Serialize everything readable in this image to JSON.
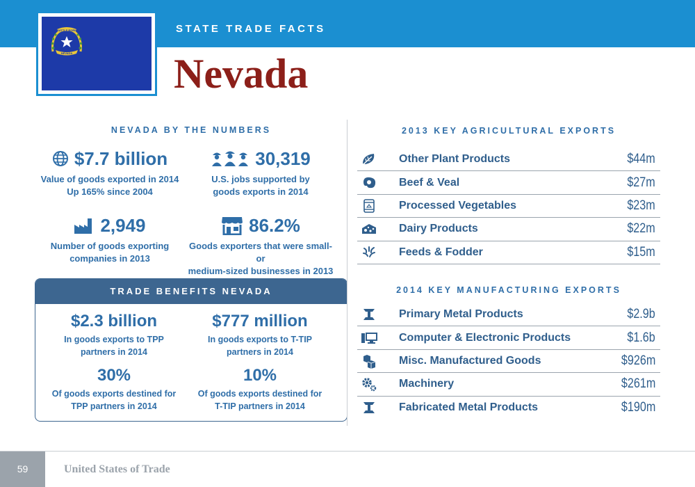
{
  "header": {
    "kicker": "STATE TRADE FACTS",
    "state": "Nevada",
    "flag": {
      "banner_top": "BATTLE BORN",
      "banner_bottom": "NEVADA"
    }
  },
  "numbers": {
    "heading": "NEVADA BY THE NUMBERS",
    "stats": [
      {
        "icon": "globe-icon",
        "value": "$7.7 billion",
        "line1": "Value of goods exported in 2014",
        "line2": "Up 165% since 2004"
      },
      {
        "icon": "workers-icon",
        "value": "30,319",
        "line1": "U.S. jobs supported by",
        "line2": "goods exports in 2014"
      },
      {
        "icon": "factory-icon",
        "value": "2,949",
        "line1": "Number of goods exporting",
        "line2": "companies in 2013"
      },
      {
        "icon": "storefront-icon",
        "value": "86.2%",
        "line1": "Goods exporters that were small- or",
        "line2": "medium-sized businesses in 2013"
      }
    ]
  },
  "benefits": {
    "heading": "TRADE BENEFITS NEVADA",
    "items": [
      {
        "value": "$2.3 billion",
        "line1": "In goods exports to TPP",
        "line2": "partners in 2014"
      },
      {
        "value": "$777 million",
        "line1": "In goods exports to T-TIP",
        "line2": "partners in 2014"
      },
      {
        "value": "30%",
        "line1": "Of goods exports destined for",
        "line2": "TPP partners in 2014"
      },
      {
        "value": "10%",
        "line1": "Of goods exports destined for",
        "line2": "T-TIP partners in 2014"
      }
    ]
  },
  "agri": {
    "heading": "2013 KEY AGRICULTURAL EXPORTS",
    "rows": [
      {
        "icon": "plant-leaf-icon",
        "label": "Other Plant Products",
        "value": "$44m"
      },
      {
        "icon": "steak-icon",
        "label": "Beef & Veal",
        "value": "$27m"
      },
      {
        "icon": "can-icon",
        "label": "Processed Vegetables",
        "value": "$23m"
      },
      {
        "icon": "cheese-icon",
        "label": "Dairy Products",
        "value": "$22m"
      },
      {
        "icon": "grain-icon",
        "label": "Feeds & Fodder",
        "value": "$15m"
      }
    ]
  },
  "mfg": {
    "heading": "2014 KEY MANUFACTURING EXPORTS",
    "rows": [
      {
        "icon": "i-beam-icon",
        "label": "Primary Metal Products",
        "value": "$2.9b"
      },
      {
        "icon": "computer-icon",
        "label": "Computer & Electronic Products",
        "value": "$1.6b"
      },
      {
        "icon": "boxes-icon",
        "label": "Misc. Manufactured Goods",
        "value": "$926m"
      },
      {
        "icon": "gears-icon",
        "label": "Machinery",
        "value": "$261m"
      },
      {
        "icon": "i-beam-icon",
        "label": "Fabricated Metal Products",
        "value": "$190m"
      }
    ]
  },
  "footer": {
    "page": "59",
    "title": "United States of Trade"
  },
  "colors": {
    "band": "#1b8fd1",
    "title": "#8c1f19",
    "text": "#2f6ea8",
    "panel": "#3d6690",
    "flag": "#1d3aa8"
  }
}
